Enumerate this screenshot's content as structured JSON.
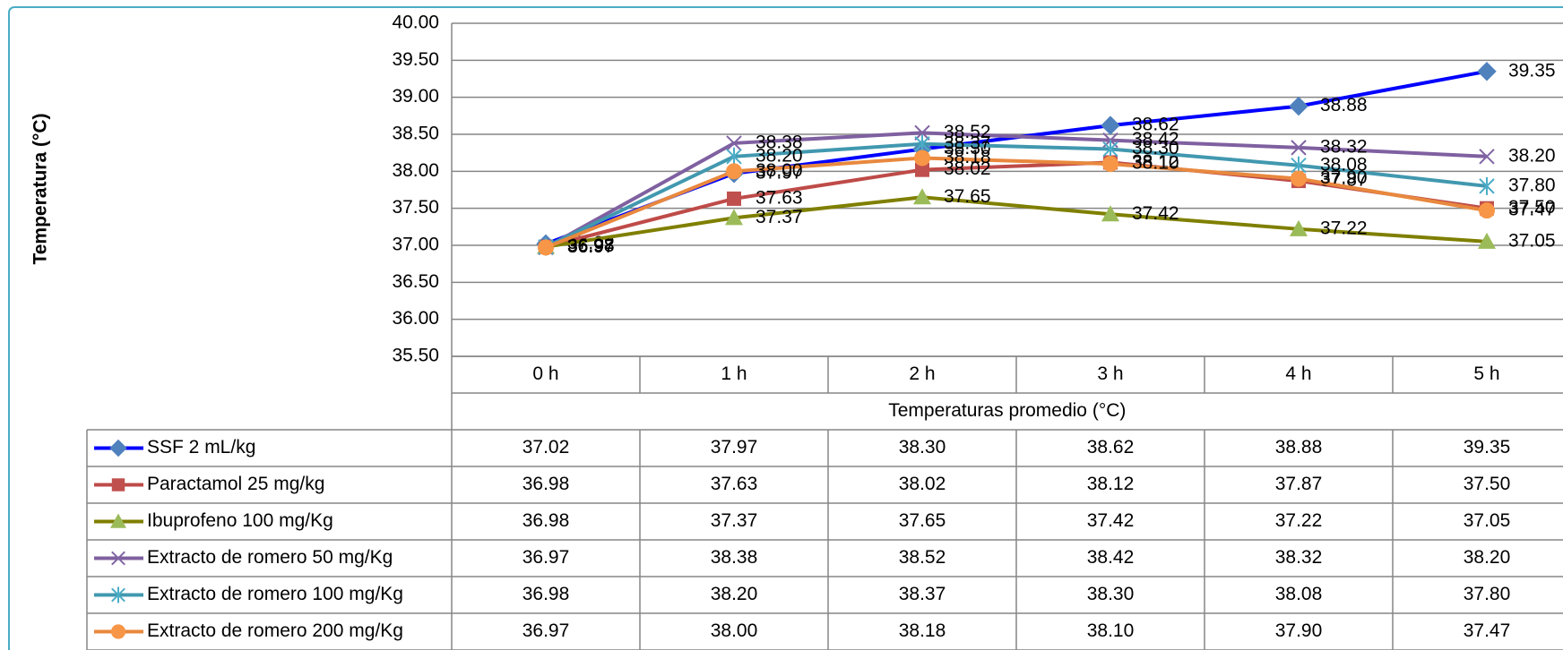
{
  "chart_data": {
    "type": "line",
    "y_label": "Temperatura (°C)",
    "x_label": "Temperaturas promedio (°C)",
    "categories": [
      "0 h",
      "1 h",
      "2 h",
      "3 h",
      "4 h",
      "5 h"
    ],
    "ylim": [
      35.5,
      40
    ],
    "yticks": [
      {
        "value": 35.5,
        "label": "35.50"
      },
      {
        "value": 36,
        "label": "36.00"
      },
      {
        "value": 36.5,
        "label": "36.50"
      },
      {
        "value": 37,
        "label": "37.00"
      },
      {
        "value": 37.5,
        "label": "37.50"
      },
      {
        "value": 38,
        "label": "38.00"
      },
      {
        "value": 38.5,
        "label": "38.50"
      },
      {
        "value": 39,
        "label": "39.00"
      },
      {
        "value": 39.5,
        "label": "39.50"
      },
      {
        "value": 40,
        "label": "40.00"
      }
    ],
    "grid": true,
    "series": [
      {
        "name": "SSF 2 mL/kg",
        "color": "#0000ff",
        "marker": "diamond",
        "marker_color": "#4f81bd",
        "values": [
          37.02,
          37.97,
          38.3,
          38.62,
          38.88,
          39.35
        ],
        "value_labels": [
          "37.02",
          "37.97",
          "38.30",
          "38.62",
          "38.88",
          "39.35"
        ]
      },
      {
        "name": "Paractamol 25 mg/kg",
        "color": "#be4b48",
        "marker": "square",
        "marker_color": "#c0504d",
        "values": [
          36.98,
          37.63,
          38.02,
          38.12,
          37.87,
          37.5
        ],
        "value_labels": [
          "36.98",
          "37.63",
          "38.02",
          "38.12",
          "37.87",
          "37.50"
        ]
      },
      {
        "name": "Ibuprofeno 100 mg/Kg",
        "color": "#7f7f00",
        "marker": "triangle",
        "marker_color": "#9bbb59",
        "values": [
          36.98,
          37.37,
          37.65,
          37.42,
          37.22,
          37.05
        ],
        "value_labels": [
          "36.98",
          "37.37",
          "37.65",
          "37.42",
          "37.22",
          "37.05"
        ]
      },
      {
        "name": "Extracto de romero 50 mg/Kg",
        "color": "#7f60a0",
        "marker": "x",
        "marker_color": "#8064a2",
        "values": [
          36.97,
          38.38,
          38.52,
          38.42,
          38.32,
          38.2
        ],
        "value_labels": [
          "36.97",
          "38.38",
          "38.52",
          "38.42",
          "38.32",
          "38.20"
        ]
      },
      {
        "name": "Extracto de romero 100 mg/Kg",
        "color": "#4198af",
        "marker": "star",
        "marker_color": "#4bacc6",
        "values": [
          36.98,
          38.2,
          38.37,
          38.3,
          38.08,
          37.8
        ],
        "value_labels": [
          "36.98",
          "38.20",
          "38.37",
          "38.30",
          "38.08",
          "37.80"
        ]
      },
      {
        "name": "Extracto de romero 200 mg/Kg",
        "color": "#e8883e",
        "marker": "circle",
        "marker_color": "#f79646",
        "values": [
          36.97,
          38.0,
          38.18,
          38.1,
          37.9,
          37.47
        ],
        "value_labels": [
          "36.97",
          "38.00",
          "38.18",
          "38.10",
          "37.90",
          "37.47"
        ]
      }
    ]
  }
}
